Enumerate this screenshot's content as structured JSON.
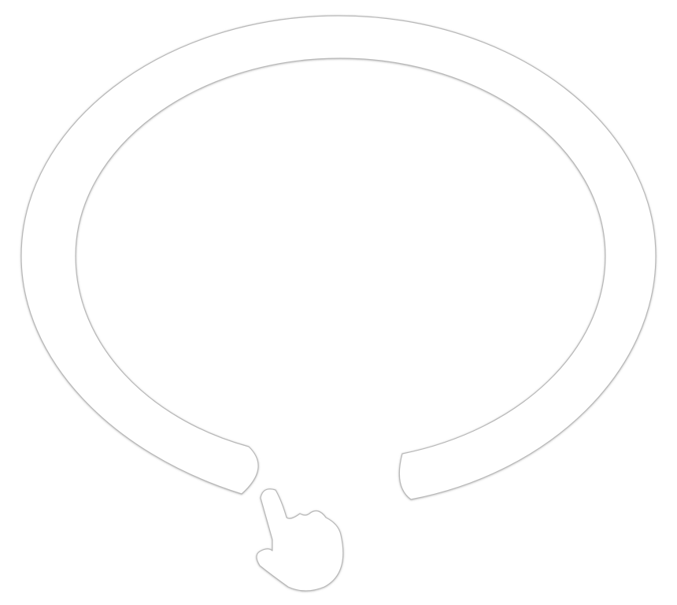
{
  "colors": {
    "background": "#ffffff",
    "outline": "#b8b8b8",
    "shadow": "#9a9a9a",
    "fill": "#ffffff"
  },
  "scene": {
    "ring": {
      "icon": "open-ring-outline",
      "opening": "bottom"
    },
    "pointer": {
      "icon": "hand-pointer-icon",
      "direction": "up-left"
    }
  }
}
